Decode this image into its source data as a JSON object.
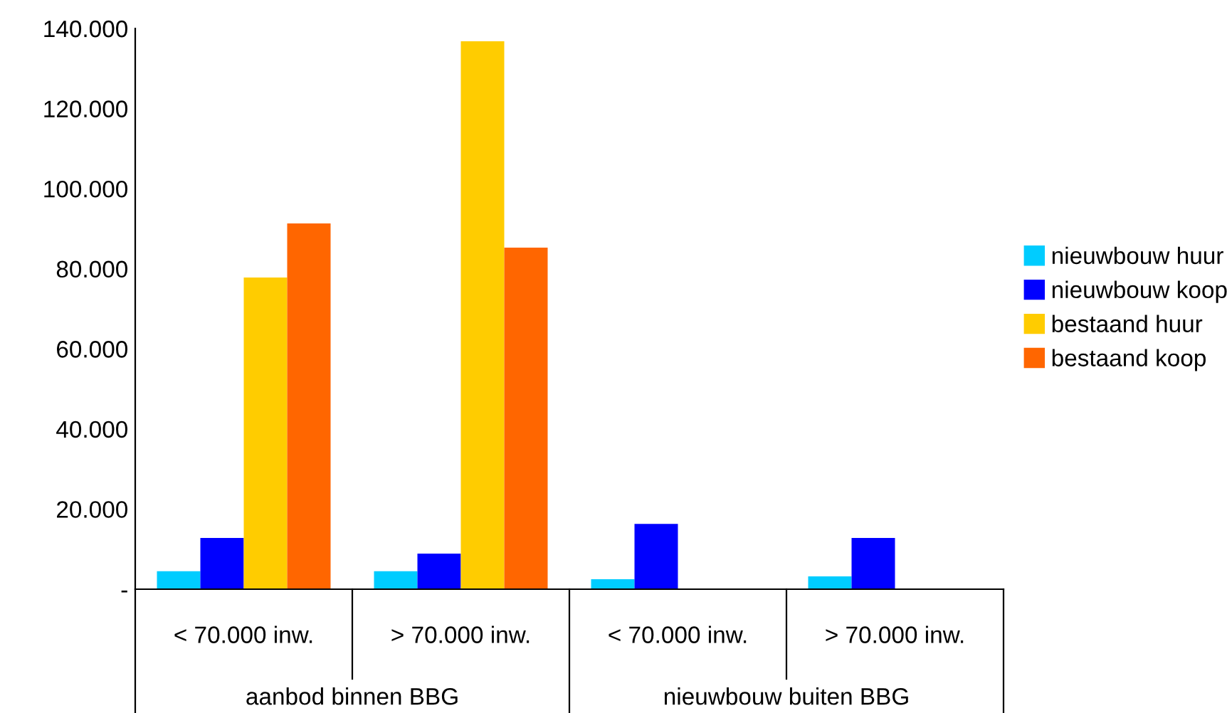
{
  "chart_data": {
    "type": "bar",
    "categories": [
      "< 70.000 inw.",
      "> 70.000 inw.",
      "< 70.000 inw.",
      "> 70.000 inw."
    ],
    "annotations": [
      "aanbod binnen BBG",
      "nieuwbouw buiten BBG"
    ],
    "series": [
      {
        "name": "nieuwbouw huur",
        "color": "#00ccff",
        "values": [
          4500,
          4500,
          2500,
          3200
        ]
      },
      {
        "name": "nieuwbouw koop",
        "color": "#0000ff",
        "values": [
          12800,
          8900,
          16300,
          12800
        ]
      },
      {
        "name": "bestaand huur",
        "color": "#ffcc00",
        "values": [
          77800,
          136800,
          null,
          null
        ]
      },
      {
        "name": "bestaand koop",
        "color": "#ff6600",
        "values": [
          91300,
          85300,
          null,
          null
        ]
      }
    ],
    "ylim": [
      0,
      140000
    ],
    "yticks": [
      {
        "value": 0,
        "label": "-"
      },
      {
        "value": 20000,
        "label": "20.000"
      },
      {
        "value": 40000,
        "label": "40.000"
      },
      {
        "value": 60000,
        "label": "60.000"
      },
      {
        "value": 80000,
        "label": "80.000"
      },
      {
        "value": 100000,
        "label": "100.000"
      },
      {
        "value": 120000,
        "label": "120.000"
      },
      {
        "value": 140000,
        "label": "140.000"
      }
    ],
    "grid": false,
    "legend": "right"
  }
}
